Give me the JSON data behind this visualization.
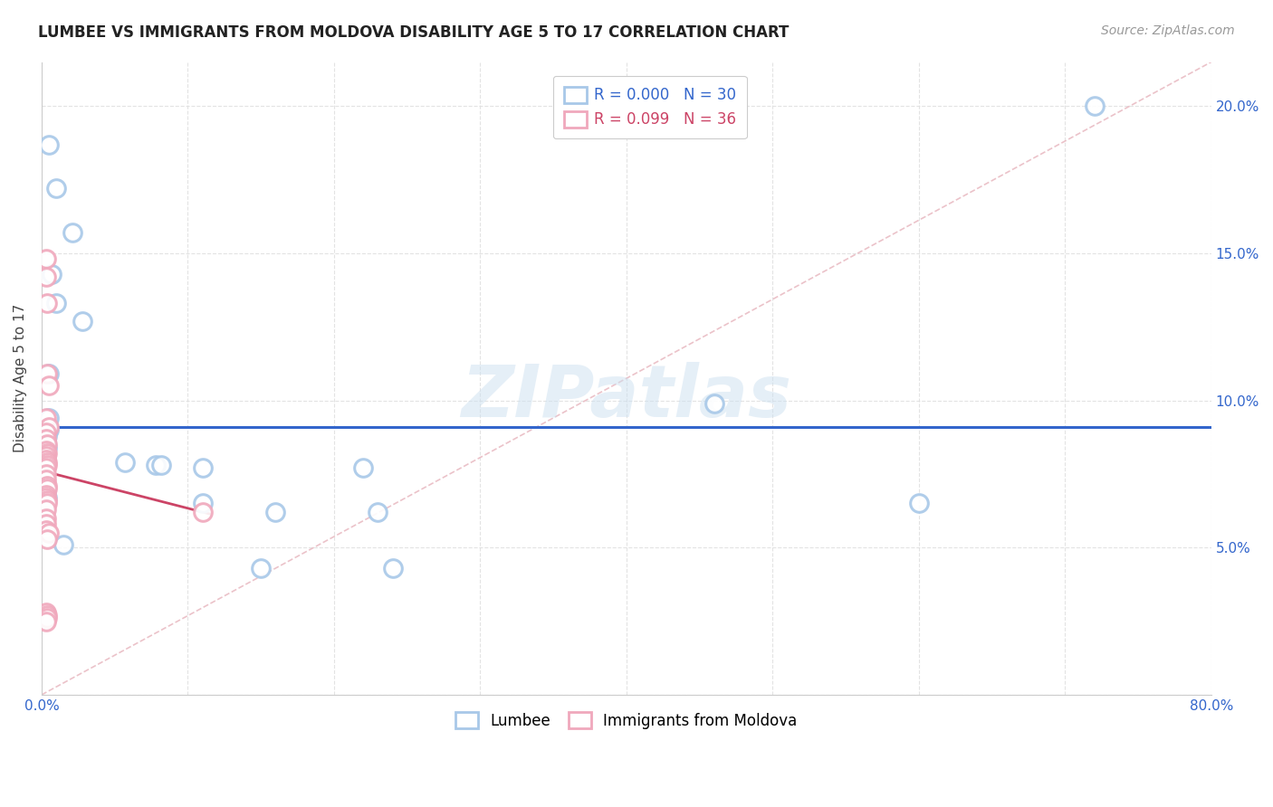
{
  "title": "LUMBEE VS IMMIGRANTS FROM MOLDOVA DISABILITY AGE 5 TO 17 CORRELATION CHART",
  "source": "Source: ZipAtlas.com",
  "ylabel": "Disability Age 5 to 17",
  "legend_lumbee": "Lumbee",
  "legend_moldova": "Immigrants from Moldova",
  "r_lumbee": "0.000",
  "n_lumbee": "30",
  "r_moldova": "0.099",
  "n_moldova": "36",
  "xlim": [
    0.0,
    0.8
  ],
  "ylim": [
    0.0,
    0.215
  ],
  "xticks": [
    0.0,
    0.1,
    0.2,
    0.3,
    0.4,
    0.5,
    0.6,
    0.7,
    0.8
  ],
  "yticks": [
    0.0,
    0.05,
    0.1,
    0.15,
    0.2
  ],
  "background_color": "#ffffff",
  "grid_color": "#e0e0e0",
  "lumbee_color": "#a8c8e8",
  "moldova_color": "#f0a8bc",
  "lumbee_line_color": "#3366cc",
  "moldova_line_color": "#cc4466",
  "diagonal_color": "#e8b8c0",
  "lumbee_points": [
    [
      0.005,
      0.187
    ],
    [
      0.01,
      0.172
    ],
    [
      0.021,
      0.157
    ],
    [
      0.007,
      0.143
    ],
    [
      0.01,
      0.133
    ],
    [
      0.72,
      0.2
    ],
    [
      0.005,
      0.109
    ],
    [
      0.028,
      0.127
    ],
    [
      0.005,
      0.094
    ],
    [
      0.46,
      0.099
    ],
    [
      0.005,
      0.09
    ],
    [
      0.004,
      0.088
    ],
    [
      0.003,
      0.086
    ],
    [
      0.004,
      0.084
    ],
    [
      0.003,
      0.082
    ],
    [
      0.003,
      0.08
    ],
    [
      0.057,
      0.079
    ],
    [
      0.078,
      0.078
    ],
    [
      0.082,
      0.078
    ],
    [
      0.11,
      0.077
    ],
    [
      0.22,
      0.077
    ],
    [
      0.003,
      0.069
    ],
    [
      0.004,
      0.067
    ],
    [
      0.11,
      0.065
    ],
    [
      0.6,
      0.065
    ],
    [
      0.16,
      0.062
    ],
    [
      0.23,
      0.062
    ],
    [
      0.015,
      0.051
    ],
    [
      0.15,
      0.043
    ],
    [
      0.24,
      0.043
    ]
  ],
  "moldova_points": [
    [
      0.003,
      0.148
    ],
    [
      0.003,
      0.142
    ],
    [
      0.004,
      0.133
    ],
    [
      0.004,
      0.109
    ],
    [
      0.005,
      0.105
    ],
    [
      0.003,
      0.094
    ],
    [
      0.005,
      0.091
    ],
    [
      0.003,
      0.089
    ],
    [
      0.003,
      0.087
    ],
    [
      0.004,
      0.085
    ],
    [
      0.003,
      0.083
    ],
    [
      0.004,
      0.082
    ],
    [
      0.003,
      0.081
    ],
    [
      0.003,
      0.08
    ],
    [
      0.004,
      0.079
    ],
    [
      0.004,
      0.078
    ],
    [
      0.003,
      0.077
    ],
    [
      0.003,
      0.075
    ],
    [
      0.003,
      0.073
    ],
    [
      0.004,
      0.071
    ],
    [
      0.004,
      0.07
    ],
    [
      0.003,
      0.068
    ],
    [
      0.003,
      0.067
    ],
    [
      0.004,
      0.066
    ],
    [
      0.004,
      0.065
    ],
    [
      0.003,
      0.063
    ],
    [
      0.11,
      0.062
    ],
    [
      0.003,
      0.06
    ],
    [
      0.003,
      0.058
    ],
    [
      0.003,
      0.056
    ],
    [
      0.005,
      0.055
    ],
    [
      0.004,
      0.053
    ],
    [
      0.003,
      0.028
    ],
    [
      0.004,
      0.027
    ],
    [
      0.004,
      0.026
    ],
    [
      0.003,
      0.025
    ]
  ],
  "lumbee_hline_y": 0.091,
  "watermark": "ZIPatlas",
  "watermark_color": "#cce0f0",
  "title_fontsize": 12,
  "source_fontsize": 10,
  "tick_fontsize": 11,
  "label_fontsize": 11
}
